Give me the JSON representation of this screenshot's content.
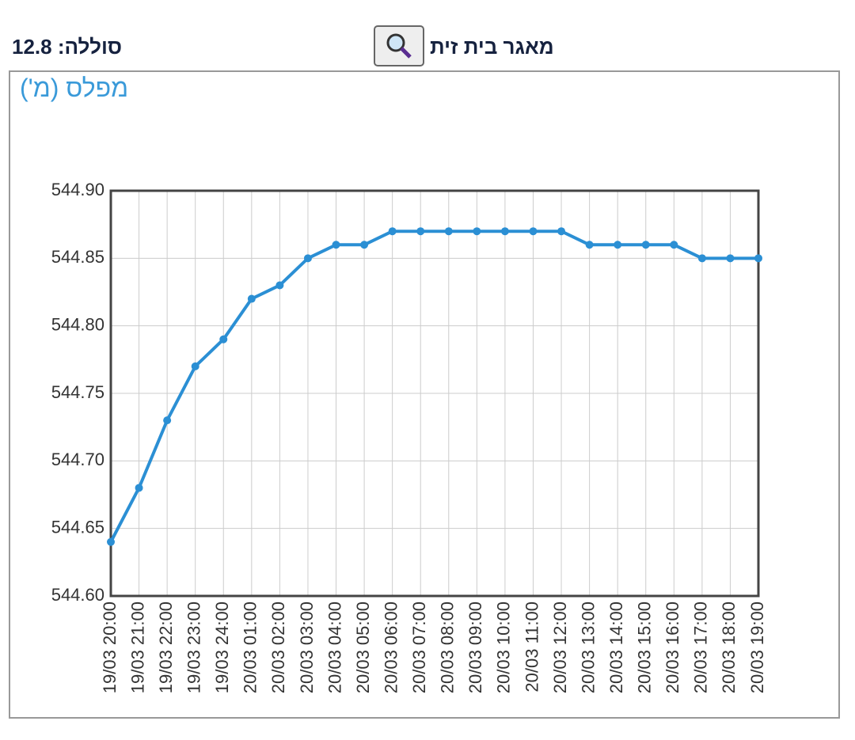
{
  "header": {
    "battery": "סוללה: 12.8",
    "station": "מאגר בית זית"
  },
  "chart_data": {
    "type": "line",
    "title": "מפלס (מ')",
    "categories": [
      "19/03 20:00",
      "19/03 21:00",
      "19/03 22:00",
      "19/03 23:00",
      "19/03 24:00",
      "20/03 01:00",
      "20/03 02:00",
      "20/03 03:00",
      "20/03 04:00",
      "20/03 05:00",
      "20/03 06:00",
      "20/03 07:00",
      "20/03 08:00",
      "20/03 09:00",
      "20/03 10:00",
      "20/03 11:00",
      "20/03 12:00",
      "20/03 13:00",
      "20/03 14:00",
      "20/03 15:00",
      "20/03 16:00",
      "20/03 17:00",
      "20/03 18:00",
      "20/03 19:00"
    ],
    "values": [
      544.64,
      544.68,
      544.73,
      544.77,
      544.79,
      544.82,
      544.83,
      544.85,
      544.86,
      544.86,
      544.87,
      544.87,
      544.87,
      544.87,
      544.87,
      544.87,
      544.87,
      544.86,
      544.86,
      544.86,
      544.86,
      544.85,
      544.85,
      544.85
    ],
    "color": "#2b8fd4",
    "ylim": [
      544.6,
      544.9
    ],
    "yticks": [
      {
        "value": 544.6,
        "label": "544.60"
      },
      544.65,
      {
        "value": 544.7,
        "label": "544.70"
      },
      544.75,
      {
        "value": 544.8,
        "label": "544.80"
      },
      544.85,
      {
        "value": 544.9,
        "label": "544.90"
      }
    ],
    "grid": true
  }
}
